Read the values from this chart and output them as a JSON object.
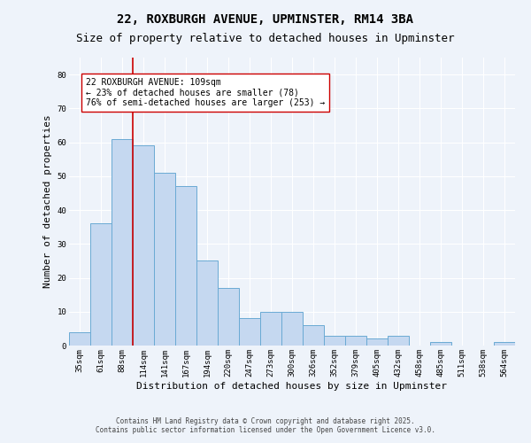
{
  "title": "22, ROXBURGH AVENUE, UPMINSTER, RM14 3BA",
  "subtitle": "Size of property relative to detached houses in Upminster",
  "xlabel": "Distribution of detached houses by size in Upminster",
  "ylabel": "Number of detached properties",
  "bar_color": "#c5d8f0",
  "bar_edge_color": "#6aaad4",
  "background_color": "#eef3fa",
  "grid_color": "#ffffff",
  "categories": [
    "35sqm",
    "61sqm",
    "88sqm",
    "114sqm",
    "141sqm",
    "167sqm",
    "194sqm",
    "220sqm",
    "247sqm",
    "273sqm",
    "300sqm",
    "326sqm",
    "352sqm",
    "379sqm",
    "405sqm",
    "432sqm",
    "458sqm",
    "485sqm",
    "511sqm",
    "538sqm",
    "564sqm"
  ],
  "values": [
    4,
    36,
    61,
    59,
    51,
    47,
    25,
    17,
    8,
    10,
    10,
    6,
    3,
    3,
    2,
    3,
    0,
    1,
    0,
    0,
    1
  ],
  "red_line_x": 2.5,
  "annotation_text": "22 ROXBURGH AVENUE: 109sqm\n← 23% of detached houses are smaller (78)\n76% of semi-detached houses are larger (253) →",
  "annotation_box_color": "#ffffff",
  "annotation_edge_color": "#cc0000",
  "annotation_text_color": "#000000",
  "red_line_color": "#cc0000",
  "ylim": [
    0,
    85
  ],
  "yticks": [
    0,
    10,
    20,
    30,
    40,
    50,
    60,
    70,
    80
  ],
  "footer1": "Contains HM Land Registry data © Crown copyright and database right 2025.",
  "footer2": "Contains public sector information licensed under the Open Government Licence v3.0.",
  "title_fontsize": 10,
  "subtitle_fontsize": 9,
  "tick_fontsize": 6.5,
  "ylabel_fontsize": 8,
  "xlabel_fontsize": 8,
  "annotation_fontsize": 7,
  "footer_fontsize": 5.5
}
